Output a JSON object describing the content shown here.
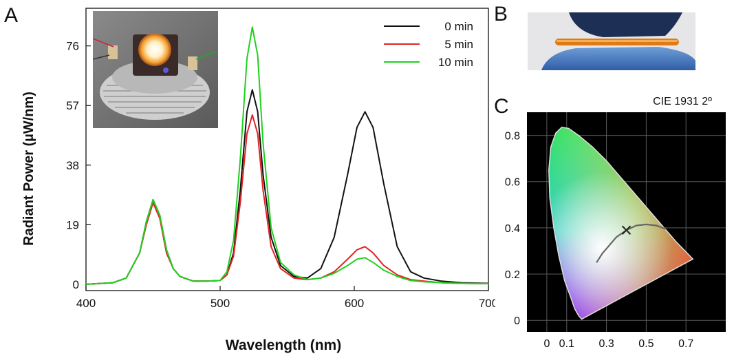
{
  "panel_labels": {
    "a": "A",
    "b": "B",
    "c": "C"
  },
  "chart_data": [
    {
      "type": "line",
      "panel": "A",
      "xlabel": "Wavelength (nm)",
      "ylabel": "Radiant Power (µW/nm)",
      "xlim": [
        400,
        700
      ],
      "ylim": [
        -2,
        88
      ],
      "xticks": [
        400,
        500,
        600,
        700
      ],
      "xtick_labels": [
        "400",
        "500",
        "600",
        "700"
      ],
      "yticks": [
        0,
        19,
        38,
        57,
        76
      ],
      "ytick_labels": [
        "0",
        "19",
        "38",
        "57",
        "76"
      ],
      "grid": false,
      "legend_position": "top-right",
      "series": [
        {
          "name": "0 min",
          "color": "#111111",
          "points": [
            [
              400,
              0
            ],
            [
              420,
              0.5
            ],
            [
              430,
              2
            ],
            [
              440,
              10
            ],
            [
              445,
              20
            ],
            [
              450,
              27
            ],
            [
              455,
              22
            ],
            [
              460,
              11
            ],
            [
              465,
              5
            ],
            [
              470,
              2.5
            ],
            [
              480,
              1
            ],
            [
              490,
              1
            ],
            [
              500,
              1.2
            ],
            [
              505,
              3
            ],
            [
              510,
              10
            ],
            [
              515,
              30
            ],
            [
              520,
              55
            ],
            [
              524,
              62
            ],
            [
              528,
              55
            ],
            [
              532,
              35
            ],
            [
              538,
              15
            ],
            [
              545,
              6
            ],
            [
              555,
              2.5
            ],
            [
              565,
              2
            ],
            [
              575,
              5
            ],
            [
              585,
              15
            ],
            [
              595,
              35
            ],
            [
              602,
              50
            ],
            [
              608,
              55
            ],
            [
              614,
              50
            ],
            [
              622,
              32
            ],
            [
              632,
              12
            ],
            [
              642,
              4
            ],
            [
              652,
              2
            ],
            [
              665,
              1
            ],
            [
              680,
              0.5
            ],
            [
              700,
              0.3
            ]
          ]
        },
        {
          "name": "5 min",
          "color": "#e02424",
          "points": [
            [
              400,
              0
            ],
            [
              420,
              0.5
            ],
            [
              430,
              2
            ],
            [
              440,
              10
            ],
            [
              445,
              19
            ],
            [
              450,
              26
            ],
            [
              455,
              21
            ],
            [
              460,
              10
            ],
            [
              465,
              5
            ],
            [
              470,
              2.5
            ],
            [
              480,
              1
            ],
            [
              490,
              1
            ],
            [
              500,
              1.2
            ],
            [
              505,
              3
            ],
            [
              510,
              9
            ],
            [
              515,
              26
            ],
            [
              520,
              48
            ],
            [
              524,
              54
            ],
            [
              528,
              48
            ],
            [
              532,
              30
            ],
            [
              538,
              12
            ],
            [
              545,
              5
            ],
            [
              555,
              2
            ],
            [
              565,
              1.5
            ],
            [
              575,
              2
            ],
            [
              585,
              4
            ],
            [
              595,
              8
            ],
            [
              602,
              11
            ],
            [
              608,
              12
            ],
            [
              614,
              10
            ],
            [
              622,
              6
            ],
            [
              632,
              3
            ],
            [
              642,
              1.5
            ],
            [
              652,
              1
            ],
            [
              665,
              0.5
            ],
            [
              680,
              0.3
            ],
            [
              700,
              0.2
            ]
          ]
        },
        {
          "name": "10 min",
          "color": "#1fd11f",
          "points": [
            [
              400,
              0
            ],
            [
              420,
              0.5
            ],
            [
              430,
              2
            ],
            [
              440,
              10
            ],
            [
              445,
              20
            ],
            [
              450,
              27
            ],
            [
              455,
              22
            ],
            [
              460,
              11
            ],
            [
              465,
              5
            ],
            [
              470,
              2.5
            ],
            [
              480,
              1
            ],
            [
              490,
              1
            ],
            [
              500,
              1.2
            ],
            [
              505,
              4
            ],
            [
              510,
              14
            ],
            [
              515,
              40
            ],
            [
              520,
              72
            ],
            [
              524,
              82
            ],
            [
              528,
              73
            ],
            [
              532,
              45
            ],
            [
              538,
              18
            ],
            [
              545,
              7
            ],
            [
              555,
              3
            ],
            [
              565,
              1.5
            ],
            [
              575,
              2
            ],
            [
              585,
              3.5
            ],
            [
              595,
              6
            ],
            [
              602,
              8
            ],
            [
              608,
              8.5
            ],
            [
              614,
              7
            ],
            [
              622,
              4.5
            ],
            [
              632,
              2.5
            ],
            [
              642,
              1.2
            ],
            [
              652,
              0.8
            ],
            [
              665,
              0.5
            ],
            [
              680,
              0.3
            ],
            [
              700,
              0.2
            ]
          ]
        }
      ]
    },
    {
      "type": "scatter",
      "panel": "C",
      "title": "CIE 1931 2º",
      "xlim": [
        -0.1,
        0.9
      ],
      "ylim": [
        -0.05,
        0.9
      ],
      "xticks": [
        0,
        0.1,
        0.3,
        0.5,
        0.7
      ],
      "xtick_labels": [
        "0",
        "0.1",
        "0.3",
        "0.5",
        "0.7"
      ],
      "yticks": [
        0,
        0.2,
        0.4,
        0.6,
        0.8
      ],
      "ytick_labels": [
        "0",
        "0.2",
        "0.4",
        "0.6",
        "0.8"
      ],
      "background": "#000000",
      "grid": true,
      "gamut_boundary": [
        [
          0.175,
          0.005
        ],
        [
          0.16,
          0.02
        ],
        [
          0.14,
          0.05
        ],
        [
          0.12,
          0.1
        ],
        [
          0.09,
          0.17
        ],
        [
          0.06,
          0.28
        ],
        [
          0.035,
          0.4
        ],
        [
          0.015,
          0.53
        ],
        [
          0.01,
          0.65
        ],
        [
          0.02,
          0.75
        ],
        [
          0.045,
          0.81
        ],
        [
          0.075,
          0.835
        ],
        [
          0.11,
          0.83
        ],
        [
          0.16,
          0.8
        ],
        [
          0.23,
          0.75
        ],
        [
          0.3,
          0.69
        ],
        [
          0.37,
          0.62
        ],
        [
          0.44,
          0.55
        ],
        [
          0.51,
          0.48
        ],
        [
          0.58,
          0.41
        ],
        [
          0.65,
          0.34
        ],
        [
          0.735,
          0.265
        ]
      ],
      "planckian_locus": [
        [
          0.25,
          0.25
        ],
        [
          0.28,
          0.29
        ],
        [
          0.31,
          0.32
        ],
        [
          0.35,
          0.36
        ],
        [
          0.4,
          0.39
        ],
        [
          0.45,
          0.41
        ],
        [
          0.5,
          0.415
        ],
        [
          0.55,
          0.41
        ],
        [
          0.6,
          0.395
        ]
      ],
      "points": [
        {
          "x": 0.4,
          "y": 0.39,
          "marker": "x"
        }
      ]
    }
  ]
}
